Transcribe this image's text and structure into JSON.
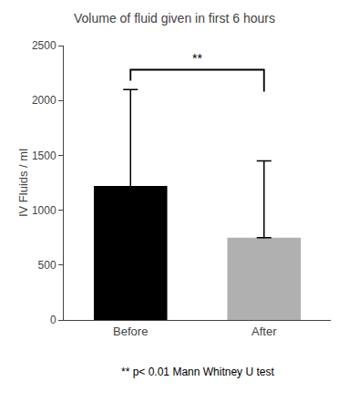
{
  "chart_data": {
    "type": "bar",
    "title": "Volume of fluid given in first 6 hours",
    "ylabel": "IV Fluids / ml",
    "categories": [
      "Before",
      "After"
    ],
    "values": [
      1220,
      750
    ],
    "colors": [
      "#000000",
      "#b0b0b0"
    ],
    "error_upper": [
      880,
      700
    ],
    "error_lower": [
      470,
      0
    ],
    "ylim": [
      0,
      2500
    ],
    "yticks": [
      0,
      500,
      1000,
      1500,
      2000,
      2500
    ],
    "significance": {
      "label": "**",
      "y": 2280,
      "y_left": 2180,
      "y_right": 2080
    },
    "footnote": "** p< 0.01 Mann Whitney U test",
    "grid": false
  }
}
